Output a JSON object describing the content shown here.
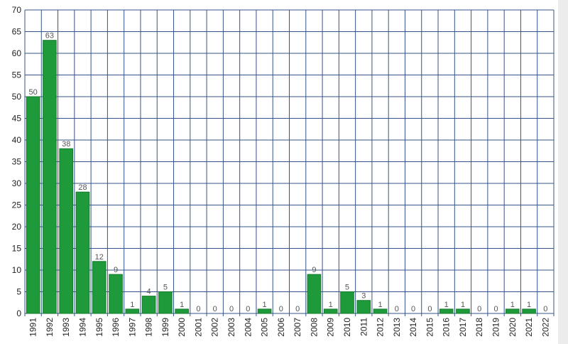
{
  "chart_data": {
    "type": "bar",
    "categories": [
      "1991",
      "1992",
      "1993",
      "1994",
      "1995",
      "1996",
      "1997",
      "1998",
      "1999",
      "2000",
      "2001",
      "2002",
      "2003",
      "2004",
      "2005",
      "2006",
      "2007",
      "2008",
      "2009",
      "2010",
      "2011",
      "2012",
      "2013",
      "2014",
      "2015",
      "2016",
      "2017",
      "2018",
      "2019",
      "2020",
      "2021",
      "2022"
    ],
    "values": [
      50,
      63,
      38,
      28,
      12,
      9,
      1,
      4,
      5,
      1,
      0,
      0,
      0,
      0,
      1,
      0,
      0,
      9,
      1,
      5,
      3,
      1,
      0,
      0,
      0,
      1,
      1,
      0,
      0,
      1,
      1,
      0
    ],
    "color": "#1e9a3a",
    "ylim": [
      0,
      70
    ],
    "yticks": [
      0,
      5,
      10,
      15,
      20,
      25,
      30,
      35,
      40,
      45,
      50,
      55,
      60,
      65,
      70
    ],
    "grid": true
  }
}
